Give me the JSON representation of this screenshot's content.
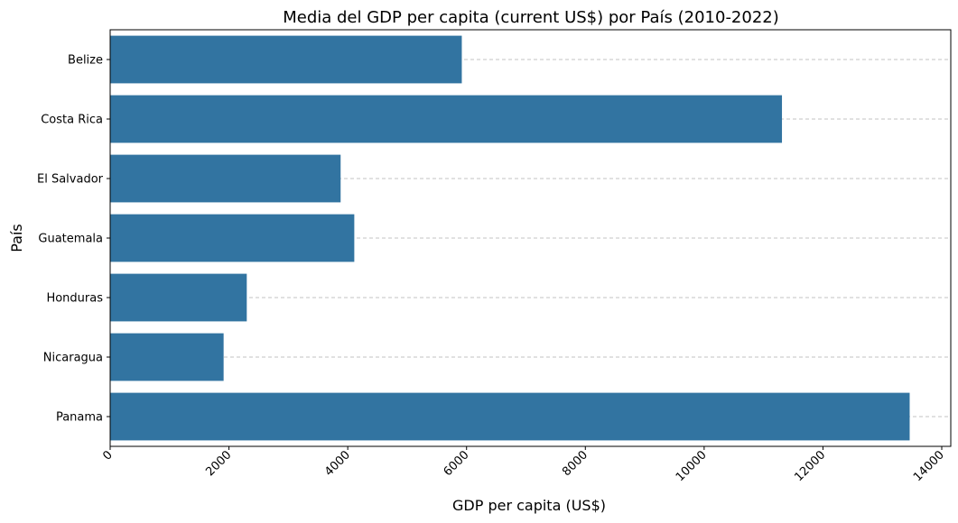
{
  "chart_data": {
    "type": "bar",
    "orientation": "horizontal",
    "title": "Media del GDP per capita (current US$) por País (2010-2022)",
    "xlabel": "GDP per capita (US$)",
    "ylabel": "País",
    "categories": [
      "Belize",
      "Costa Rica",
      "El Salvador",
      "Guatemala",
      "Honduras",
      "Nicaragua",
      "Panama"
    ],
    "values": [
      5920,
      11310,
      3880,
      4110,
      2300,
      1910,
      13460
    ],
    "xlim": [
      0,
      14000
    ],
    "xticks": [
      "0",
      "2000",
      "4000",
      "6000",
      "8000",
      "10000",
      "12000",
      "14000"
    ],
    "x_tick_rotation": "45",
    "grid": "horizontal dashed",
    "bar_color": "#3274a1"
  }
}
